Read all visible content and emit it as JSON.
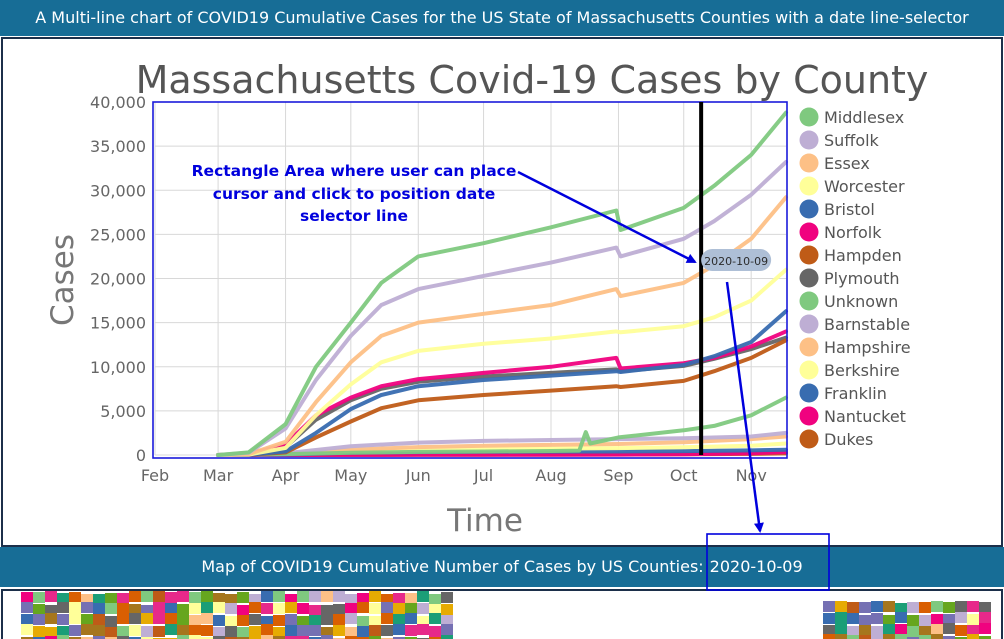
{
  "header": {
    "title": "A Multi-line chart of COVID19 Cumulative Cases for the US State of Massachusetts Counties with a date line-selector"
  },
  "chart_data": {
    "type": "line",
    "title": "Massachusetts Covid-19 Cases by County",
    "xlabel": "Time",
    "ylabel": "Cases",
    "x_ticks": [
      "Feb",
      "Mar",
      "Apr",
      "May",
      "Jun",
      "Jul",
      "Aug",
      "Sep",
      "Oct",
      "Nov"
    ],
    "x_tick_dates": [
      "2020-02-01",
      "2020-03-01",
      "2020-04-01",
      "2020-05-01",
      "2020-06-01",
      "2020-07-01",
      "2020-08-01",
      "2020-09-01",
      "2020-10-01",
      "2020-11-01"
    ],
    "y_ticks": [
      "0",
      "5,000",
      "10,000",
      "15,000",
      "20,000",
      "25,000",
      "30,000",
      "35,000",
      "40,000"
    ],
    "ylim": [
      0,
      40000
    ],
    "xlim": [
      "2020-02-01",
      "2020-11-17"
    ],
    "grid": true,
    "legend_position": "right",
    "selected_date": "2020-10-09",
    "series": [
      {
        "name": "Middlesex",
        "color": "#7fc97f",
        "points": [
          [
            "2020-03-01",
            0
          ],
          [
            "2020-03-15",
            300
          ],
          [
            "2020-04-01",
            3500
          ],
          [
            "2020-04-15",
            10000
          ],
          [
            "2020-05-01",
            15000
          ],
          [
            "2020-05-15",
            19500
          ],
          [
            "2020-06-01",
            22500
          ],
          [
            "2020-07-01",
            24000
          ],
          [
            "2020-08-01",
            25800
          ],
          [
            "2020-08-31",
            27700
          ],
          [
            "2020-09-02",
            25500
          ],
          [
            "2020-10-01",
            28000
          ],
          [
            "2020-10-15",
            30500
          ],
          [
            "2020-11-01",
            34000
          ],
          [
            "2020-11-17",
            38800
          ]
        ]
      },
      {
        "name": "Suffolk",
        "color": "#beaed4",
        "points": [
          [
            "2020-03-01",
            0
          ],
          [
            "2020-03-15",
            250
          ],
          [
            "2020-04-01",
            3000
          ],
          [
            "2020-04-15",
            8500
          ],
          [
            "2020-05-01",
            13500
          ],
          [
            "2020-05-15",
            17000
          ],
          [
            "2020-06-01",
            18800
          ],
          [
            "2020-07-01",
            20300
          ],
          [
            "2020-08-01",
            21800
          ],
          [
            "2020-08-31",
            23500
          ],
          [
            "2020-09-02",
            22500
          ],
          [
            "2020-10-01",
            24500
          ],
          [
            "2020-10-15",
            26500
          ],
          [
            "2020-11-01",
            29500
          ],
          [
            "2020-11-17",
            33200
          ]
        ]
      },
      {
        "name": "Essex",
        "color": "#fdc086",
        "points": [
          [
            "2020-03-01",
            0
          ],
          [
            "2020-03-15",
            100
          ],
          [
            "2020-04-01",
            1500
          ],
          [
            "2020-04-15",
            6000
          ],
          [
            "2020-05-01",
            10500
          ],
          [
            "2020-05-15",
            13500
          ],
          [
            "2020-06-01",
            15000
          ],
          [
            "2020-07-01",
            16000
          ],
          [
            "2020-08-01",
            17000
          ],
          [
            "2020-08-31",
            18800
          ],
          [
            "2020-09-02",
            18000
          ],
          [
            "2020-10-01",
            19500
          ],
          [
            "2020-10-15",
            21500
          ],
          [
            "2020-11-01",
            24500
          ],
          [
            "2020-11-17",
            29200
          ]
        ]
      },
      {
        "name": "Worcester",
        "color": "#ffff99",
        "points": [
          [
            "2020-03-01",
            0
          ],
          [
            "2020-03-15",
            50
          ],
          [
            "2020-04-01",
            800
          ],
          [
            "2020-04-15",
            4500
          ],
          [
            "2020-05-01",
            8000
          ],
          [
            "2020-05-15",
            10500
          ],
          [
            "2020-06-01",
            11800
          ],
          [
            "2020-07-01",
            12600
          ],
          [
            "2020-08-01",
            13200
          ],
          [
            "2020-08-31",
            14000
          ],
          [
            "2020-09-02",
            13900
          ],
          [
            "2020-10-01",
            14600
          ],
          [
            "2020-10-15",
            15600
          ],
          [
            "2020-11-01",
            17500
          ],
          [
            "2020-11-17",
            21000
          ]
        ]
      },
      {
        "name": "Bristol",
        "color": "#386cb0",
        "points": [
          [
            "2020-03-01",
            0
          ],
          [
            "2020-03-15",
            30
          ],
          [
            "2020-04-01",
            400
          ],
          [
            "2020-04-15",
            2500
          ],
          [
            "2020-05-01",
            5200
          ],
          [
            "2020-05-15",
            6800
          ],
          [
            "2020-06-01",
            7800
          ],
          [
            "2020-07-01",
            8500
          ],
          [
            "2020-08-01",
            9000
          ],
          [
            "2020-08-31",
            9500
          ],
          [
            "2020-09-02",
            9400
          ],
          [
            "2020-10-01",
            10200
          ],
          [
            "2020-10-15",
            11200
          ],
          [
            "2020-11-01",
            12800
          ],
          [
            "2020-11-17",
            16300
          ]
        ]
      },
      {
        "name": "Norfolk",
        "color": "#f0027f",
        "points": [
          [
            "2020-03-01",
            0
          ],
          [
            "2020-03-15",
            100
          ],
          [
            "2020-04-01",
            1200
          ],
          [
            "2020-04-15",
            4500
          ],
          [
            "2020-05-01",
            6500
          ],
          [
            "2020-05-15",
            7800
          ],
          [
            "2020-06-01",
            8600
          ],
          [
            "2020-07-01",
            9300
          ],
          [
            "2020-08-01",
            10000
          ],
          [
            "2020-08-31",
            11000
          ],
          [
            "2020-09-02",
            9800
          ],
          [
            "2020-10-01",
            10400
          ],
          [
            "2020-10-15",
            11000
          ],
          [
            "2020-11-01",
            12300
          ],
          [
            "2020-11-17",
            14000
          ]
        ]
      },
      {
        "name": "Hampden",
        "color": "#bf5b17",
        "points": [
          [
            "2020-03-01",
            0
          ],
          [
            "2020-03-15",
            20
          ],
          [
            "2020-04-01",
            300
          ],
          [
            "2020-04-15",
            2000
          ],
          [
            "2020-05-01",
            3800
          ],
          [
            "2020-05-15",
            5300
          ],
          [
            "2020-06-01",
            6200
          ],
          [
            "2020-07-01",
            6800
          ],
          [
            "2020-08-01",
            7300
          ],
          [
            "2020-08-31",
            7800
          ],
          [
            "2020-09-02",
            7700
          ],
          [
            "2020-10-01",
            8400
          ],
          [
            "2020-10-15",
            9500
          ],
          [
            "2020-11-01",
            11000
          ],
          [
            "2020-11-17",
            13000
          ]
        ]
      },
      {
        "name": "Plymouth",
        "color": "#666666",
        "points": [
          [
            "2020-03-01",
            0
          ],
          [
            "2020-03-15",
            50
          ],
          [
            "2020-04-01",
            900
          ],
          [
            "2020-04-15",
            4000
          ],
          [
            "2020-05-01",
            6200
          ],
          [
            "2020-05-15",
            7500
          ],
          [
            "2020-06-01",
            8300
          ],
          [
            "2020-07-01",
            8900
          ],
          [
            "2020-08-01",
            9300
          ],
          [
            "2020-08-31",
            9700
          ],
          [
            "2020-09-02",
            9500
          ],
          [
            "2020-10-01",
            10100
          ],
          [
            "2020-10-15",
            10900
          ],
          [
            "2020-11-01",
            12000
          ],
          [
            "2020-11-17",
            13300
          ]
        ]
      },
      {
        "name": "Unknown",
        "color": "#7fc97f",
        "points": [
          [
            "2020-03-01",
            0
          ],
          [
            "2020-04-01",
            100
          ],
          [
            "2020-05-01",
            250
          ],
          [
            "2020-06-01",
            350
          ],
          [
            "2020-07-01",
            400
          ],
          [
            "2020-08-01",
            450
          ],
          [
            "2020-08-14",
            500
          ],
          [
            "2020-08-17",
            2600
          ],
          [
            "2020-08-19",
            1300
          ],
          [
            "2020-09-01",
            2000
          ],
          [
            "2020-10-01",
            2800
          ],
          [
            "2020-10-15",
            3300
          ],
          [
            "2020-11-01",
            4500
          ],
          [
            "2020-11-17",
            6500
          ]
        ]
      },
      {
        "name": "Barnstable",
        "color": "#beaed4",
        "points": [
          [
            "2020-03-01",
            0
          ],
          [
            "2020-04-01",
            200
          ],
          [
            "2020-05-01",
            1000
          ],
          [
            "2020-06-01",
            1400
          ],
          [
            "2020-07-01",
            1600
          ],
          [
            "2020-08-01",
            1700
          ],
          [
            "2020-09-01",
            1800
          ],
          [
            "2020-10-01",
            1900
          ],
          [
            "2020-11-01",
            2100
          ],
          [
            "2020-11-17",
            2500
          ]
        ]
      },
      {
        "name": "Hampshire",
        "color": "#fdc086",
        "points": [
          [
            "2020-03-01",
            0
          ],
          [
            "2020-04-01",
            150
          ],
          [
            "2020-05-01",
            600
          ],
          [
            "2020-06-01",
            900
          ],
          [
            "2020-07-01",
            1050
          ],
          [
            "2020-08-01",
            1150
          ],
          [
            "2020-09-01",
            1250
          ],
          [
            "2020-10-01",
            1450
          ],
          [
            "2020-11-01",
            1800
          ],
          [
            "2020-11-17",
            2100
          ]
        ]
      },
      {
        "name": "Berkshire",
        "color": "#ffff99",
        "points": [
          [
            "2020-03-01",
            0
          ],
          [
            "2020-04-01",
            150
          ],
          [
            "2020-05-01",
            450
          ],
          [
            "2020-06-01",
            600
          ],
          [
            "2020-07-01",
            680
          ],
          [
            "2020-08-01",
            730
          ],
          [
            "2020-09-01",
            780
          ],
          [
            "2020-10-01",
            880
          ],
          [
            "2020-11-01",
            1050
          ],
          [
            "2020-11-17",
            1300
          ]
        ]
      },
      {
        "name": "Franklin",
        "color": "#386cb0",
        "points": [
          [
            "2020-03-01",
            0
          ],
          [
            "2020-04-01",
            50
          ],
          [
            "2020-05-01",
            250
          ],
          [
            "2020-06-01",
            330
          ],
          [
            "2020-07-01",
            360
          ],
          [
            "2020-08-01",
            380
          ],
          [
            "2020-09-01",
            400
          ],
          [
            "2020-10-01",
            440
          ],
          [
            "2020-11-01",
            520
          ],
          [
            "2020-11-17",
            600
          ]
        ]
      },
      {
        "name": "Nantucket",
        "color": "#f0027f",
        "points": [
          [
            "2020-03-01",
            0
          ],
          [
            "2020-04-01",
            5
          ],
          [
            "2020-05-01",
            15
          ],
          [
            "2020-06-01",
            20
          ],
          [
            "2020-07-01",
            25
          ],
          [
            "2020-08-01",
            35
          ],
          [
            "2020-09-01",
            50
          ],
          [
            "2020-10-01",
            80
          ],
          [
            "2020-11-01",
            200
          ],
          [
            "2020-11-17",
            330
          ]
        ]
      },
      {
        "name": "Dukes",
        "color": "#bf5b17",
        "points": [
          [
            "2020-03-01",
            0
          ],
          [
            "2020-04-01",
            5
          ],
          [
            "2020-05-01",
            15
          ],
          [
            "2020-06-01",
            25
          ],
          [
            "2020-07-01",
            35
          ],
          [
            "2020-08-01",
            45
          ],
          [
            "2020-09-01",
            60
          ],
          [
            "2020-10-01",
            80
          ],
          [
            "2020-11-01",
            120
          ],
          [
            "2020-11-17",
            180
          ]
        ]
      }
    ]
  },
  "annotation": {
    "text_lines": [
      "Rectangle Area where user can place",
      "cursor and click to position date",
      "selector line"
    ],
    "color": "#0000dd"
  },
  "map_section": {
    "title": "Map of COVID19 Cumulative Number of Cases by US Counties:",
    "date": "2020-10-09"
  }
}
